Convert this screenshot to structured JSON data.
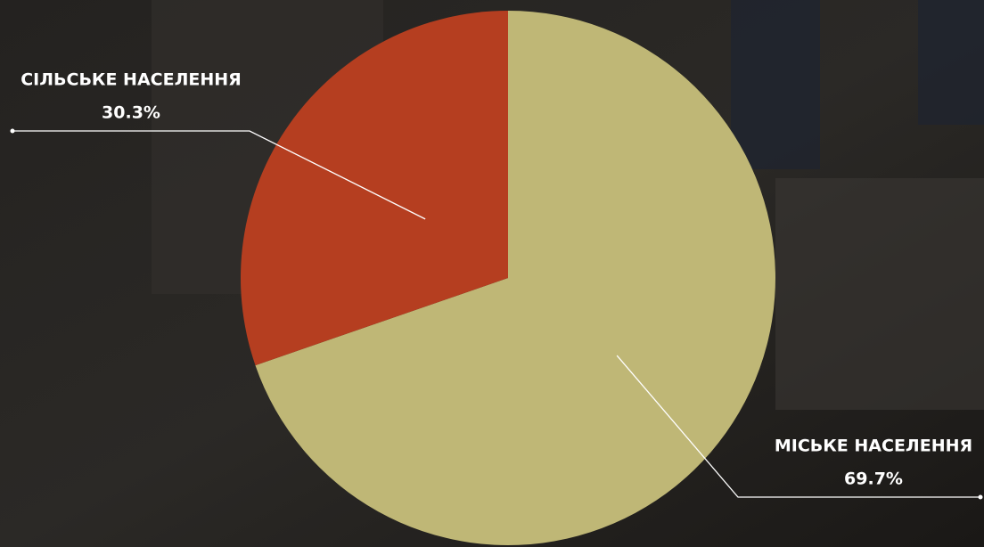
{
  "chart_data": {
    "type": "pie",
    "categories": [
      "МІСЬКЕ НАСЕЛЕННЯ",
      "СІЛЬСЬКЕ НАСЕЛЕННЯ"
    ],
    "values": [
      69.7,
      30.3
    ],
    "value_labels": [
      "69.7%",
      "30.3%"
    ],
    "colors": [
      "#bfb776",
      "#b53e20"
    ]
  }
}
